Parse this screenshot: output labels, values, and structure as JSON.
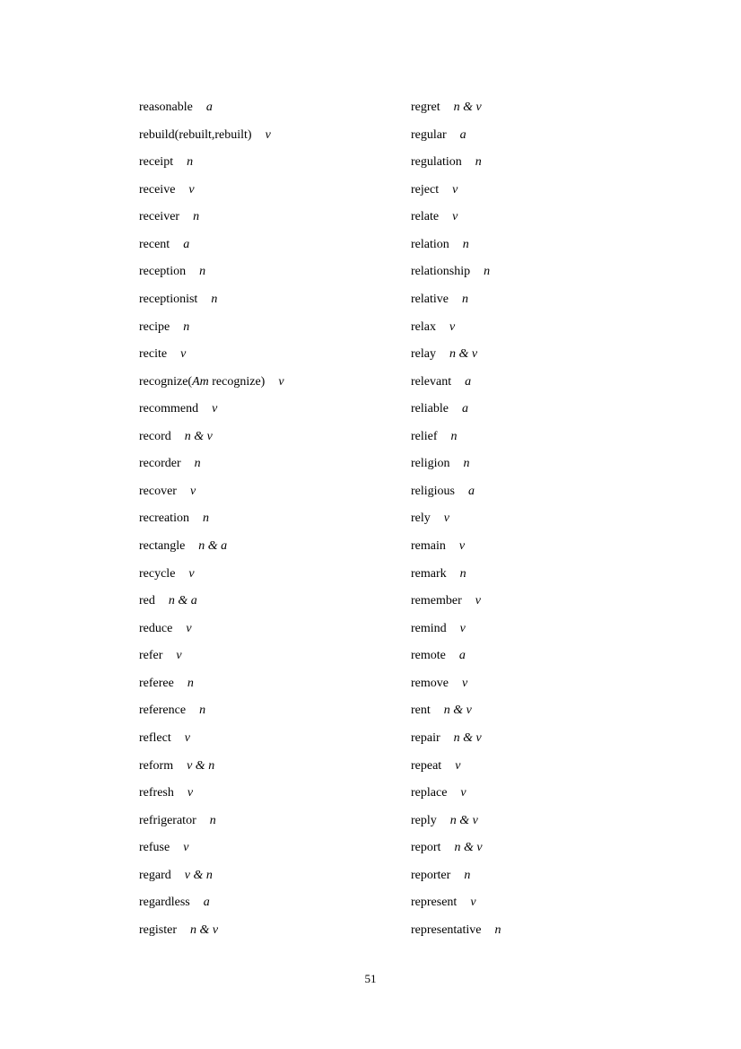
{
  "columns": [
    [
      {
        "word": "reasonable",
        "pos": "a"
      },
      {
        "word": "rebuild(rebuilt,rebuilt)",
        "pos": "v"
      },
      {
        "word": "receipt",
        "pos": "n"
      },
      {
        "word": "receive",
        "pos": "v"
      },
      {
        "word": "receiver",
        "pos": "n"
      },
      {
        "word": "recent",
        "pos": "a"
      },
      {
        "word": "reception",
        "pos": "n"
      },
      {
        "word": "receptionist",
        "pos": "n"
      },
      {
        "word": "recipe",
        "pos": "n"
      },
      {
        "word": "recite",
        "pos": "v"
      },
      {
        "word": "recognize(",
        "italic": "Am",
        "word_after": " recognize)",
        "pos": "v"
      },
      {
        "word": "recommend",
        "pos": "v"
      },
      {
        "word": "record",
        "pos": "n & v"
      },
      {
        "word": "recorder",
        "pos": "n"
      },
      {
        "word": "recover",
        "pos": "v"
      },
      {
        "word": "recreation",
        "pos": "n"
      },
      {
        "word": "rectangle",
        "pos": "n & a"
      },
      {
        "word": "recycle",
        "pos": "v"
      },
      {
        "word": "red",
        "pos": "n & a"
      },
      {
        "word": "reduce",
        "pos": "v"
      },
      {
        "word": "refer",
        "pos": "v"
      },
      {
        "word": "referee",
        "pos": "n"
      },
      {
        "word": "reference",
        "pos": "n"
      },
      {
        "word": "reflect",
        "pos": "v"
      },
      {
        "word": "reform",
        "pos": "v & n"
      },
      {
        "word": "refresh",
        "pos": "v"
      },
      {
        "word": "refrigerator",
        "pos": "n"
      },
      {
        "word": "refuse",
        "pos": "v"
      },
      {
        "word": "regard",
        "pos": "v & n"
      },
      {
        "word": "regardless",
        "pos": "a"
      },
      {
        "word": "register",
        "pos": "n & v"
      }
    ],
    [
      {
        "word": "regret",
        "pos": "n & v"
      },
      {
        "word": "regular",
        "pos": "a"
      },
      {
        "word": "regulation",
        "pos": "n"
      },
      {
        "word": "reject",
        "pos": "v"
      },
      {
        "word": "relate",
        "pos": "v"
      },
      {
        "word": "relation",
        "pos": "n"
      },
      {
        "word": "relationship",
        "pos": "n"
      },
      {
        "word": "relative",
        "pos": "n"
      },
      {
        "word": "relax",
        "pos": "v"
      },
      {
        "word": "relay",
        "pos": "n & v"
      },
      {
        "word": "relevant",
        "pos": "a"
      },
      {
        "word": "reliable",
        "pos": "a"
      },
      {
        "word": "relief",
        "pos": "n"
      },
      {
        "word": "religion",
        "pos": "n"
      },
      {
        "word": "religious",
        "pos": "a"
      },
      {
        "word": "rely",
        "pos": "v"
      },
      {
        "word": "remain",
        "pos": "v"
      },
      {
        "word": "remark",
        "pos": "n"
      },
      {
        "word": "remember",
        "pos": "v"
      },
      {
        "word": "remind",
        "pos": "v"
      },
      {
        "word": "remote",
        "pos": "a"
      },
      {
        "word": "remove",
        "pos": "v"
      },
      {
        "word": "rent",
        "pos": "n & v"
      },
      {
        "word": "repair",
        "pos": "n & v"
      },
      {
        "word": "repeat",
        "pos": "v"
      },
      {
        "word": "replace",
        "pos": "v"
      },
      {
        "word": "reply",
        "pos": "n & v"
      },
      {
        "word": "report",
        "pos": "n & v"
      },
      {
        "word": "reporter",
        "pos": "n"
      },
      {
        "word": "represent",
        "pos": "v"
      },
      {
        "word": "representative",
        "pos": "n"
      }
    ]
  ],
  "page_number": "51"
}
